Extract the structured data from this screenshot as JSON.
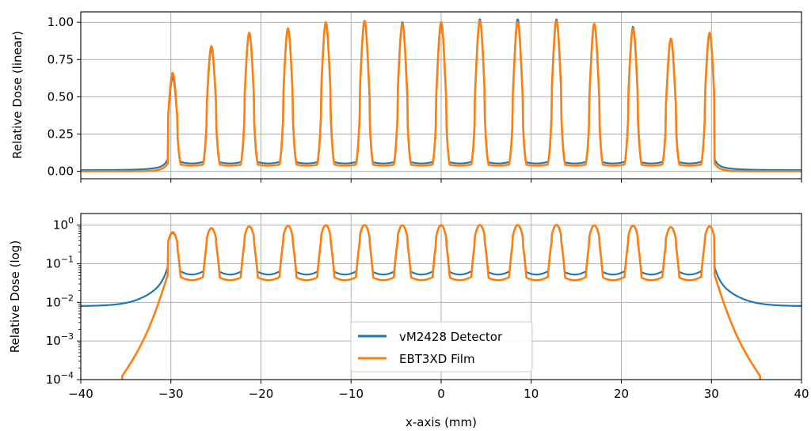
{
  "chart_data": {
    "type": "line",
    "x_range": [
      -40,
      40
    ],
    "x_ticks": [
      -40,
      -30,
      -20,
      -10,
      0,
      10,
      20,
      30,
      40
    ],
    "x_tick_labels": [
      "−40",
      "−30",
      "−20",
      "−10",
      "0",
      "10",
      "20",
      "30",
      "40"
    ],
    "xlabel": "x-axis (mm)",
    "grid": true,
    "legend_placement": "lower-center (bottom panel)",
    "peak_positions": [
      -29.8,
      -25.5,
      -21.3,
      -17.0,
      -12.8,
      -8.5,
      -4.3,
      0.0,
      4.3,
      8.5,
      12.8,
      17.0,
      21.3,
      25.5,
      29.8
    ],
    "panels": [
      {
        "name": "linear",
        "ylabel": "Relative Dose (linear)",
        "yscale": "linear",
        "ylim": [
          -0.05,
          1.07
        ],
        "y_ticks": [
          0.0,
          0.25,
          0.5,
          0.75,
          1.0
        ],
        "y_tick_labels": [
          "0.00",
          "0.25",
          "0.50",
          "0.75",
          "1.00"
        ],
        "series": [
          {
            "name": "vM2428 Detector",
            "color": "#1f77b4",
            "peak_values": [
              0.63,
              0.82,
              0.92,
              0.95,
              0.99,
              1.0,
              1.0,
              0.99,
              1.02,
              1.02,
              1.02,
              0.99,
              0.97,
              0.89,
              0.92
            ],
            "valley_values": [
              0.07,
              0.07,
              0.07,
              0.07,
              0.07,
              0.07,
              0.07,
              0.07,
              0.07,
              0.07,
              0.07,
              0.07,
              0.07,
              0.07
            ],
            "tail_at_edge": 0.008,
            "tail_near_field": 0.04
          },
          {
            "name": "EBT3XD Film",
            "color": "#ff7f0e",
            "peak_values": [
              0.66,
              0.84,
              0.93,
              0.96,
              1.0,
              1.01,
              0.99,
              1.0,
              1.01,
              1.0,
              1.01,
              0.99,
              0.96,
              0.89,
              0.93
            ],
            "valley_values": [
              0.05,
              0.05,
              0.05,
              0.05,
              0.05,
              0.05,
              0.05,
              0.05,
              0.05,
              0.05,
              0.05,
              0.05,
              0.05,
              0.05
            ],
            "tail_at_edge": 0.0,
            "tail_near_field": 0.02
          }
        ]
      },
      {
        "name": "log",
        "ylabel": "Relative Dose (log)",
        "yscale": "log",
        "ylim": [
          0.0001,
          2.0
        ],
        "y_ticks": [
          0.0001,
          0.001,
          0.01,
          0.1,
          1
        ],
        "y_tick_labels": [
          {
            "base": "10",
            "exp": "−4"
          },
          {
            "base": "10",
            "exp": "−3"
          },
          {
            "base": "10",
            "exp": "−2"
          },
          {
            "base": "10",
            "exp": "−1"
          },
          {
            "base": "10",
            "exp": "0"
          }
        ],
        "series": [
          {
            "name": "vM2428 Detector",
            "color": "#1f77b4"
          },
          {
            "name": "EBT3XD Film",
            "color": "#ff7f0e"
          }
        ]
      }
    ],
    "legend": [
      {
        "label": "vM2428 Detector",
        "color": "#1f77b4"
      },
      {
        "label": "EBT3XD Film",
        "color": "#ff7f0e"
      }
    ]
  }
}
